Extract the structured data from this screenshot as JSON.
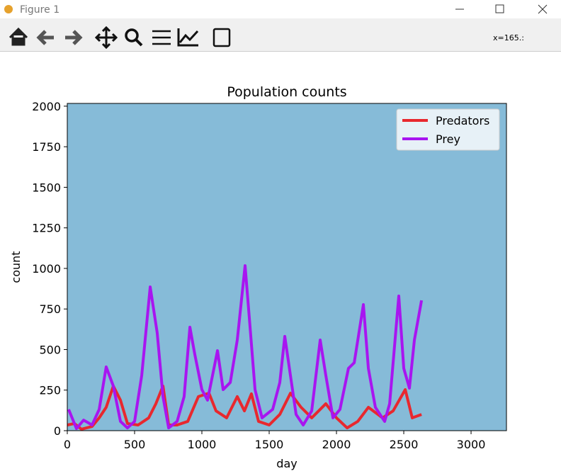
{
  "window": {
    "title": "Figure 1",
    "coords": "x=165.:"
  },
  "chart_data": {
    "type": "line",
    "title": "Population counts",
    "xlabel": "day",
    "ylabel": "count",
    "xlim": [
      0,
      3263
    ],
    "ylim": [
      0,
      2017
    ],
    "xticks": [
      0,
      500,
      1000,
      1500,
      2000,
      2500,
      3000
    ],
    "yticks": [
      0,
      250,
      500,
      750,
      1000,
      1250,
      1500,
      1750,
      2000
    ],
    "background": "#86bbd8",
    "legend": "upper right",
    "series": [
      {
        "name": "Predators",
        "color": "#e8282e",
        "x": [
          0,
          53,
          105,
          184,
          237,
          289,
          342,
          395,
          447,
          526,
          605,
          658,
          711,
          753,
          816,
          895,
          974,
          1053,
          1105,
          1184,
          1263,
          1316,
          1368,
          1421,
          1500,
          1579,
          1658,
          1737,
          1816,
          1921,
          2000,
          2079,
          2158,
          2237,
          2342,
          2421,
          2511,
          2563,
          2632
        ],
        "values": [
          35,
          44,
          9,
          26,
          79,
          144,
          275,
          188,
          44,
          35,
          79,
          166,
          275,
          35,
          35,
          57,
          210,
          231,
          122,
          79,
          210,
          122,
          227,
          57,
          35,
          100,
          231,
          144,
          79,
          166,
          79,
          17,
          57,
          144,
          79,
          122,
          253,
          79,
          100
        ]
      },
      {
        "name": "Prey",
        "color": "#a815f0",
        "x": [
          10,
          68,
          121,
          184,
          237,
          289,
          342,
          395,
          447,
          500,
          553,
          616,
          668,
          711,
          753,
          816,
          868,
          911,
          947,
          1000,
          1042,
          1079,
          1116,
          1158,
          1211,
          1263,
          1321,
          1353,
          1395,
          1447,
          1526,
          1579,
          1616,
          1658,
          1700,
          1753,
          1816,
          1879,
          1921,
          1974,
          2026,
          2089,
          2132,
          2200,
          2237,
          2289,
          2358,
          2395,
          2463,
          2500,
          2542,
          2579,
          2632
        ],
        "values": [
          131,
          13,
          65,
          35,
          131,
          393,
          275,
          57,
          17,
          57,
          340,
          886,
          603,
          210,
          17,
          57,
          210,
          638,
          472,
          253,
          188,
          340,
          493,
          253,
          297,
          559,
          1017,
          690,
          253,
          79,
          131,
          297,
          581,
          340,
          100,
          35,
          122,
          559,
          340,
          79,
          131,
          384,
          419,
          777,
          384,
          144,
          57,
          166,
          830,
          384,
          262,
          559,
          803
        ]
      }
    ]
  }
}
